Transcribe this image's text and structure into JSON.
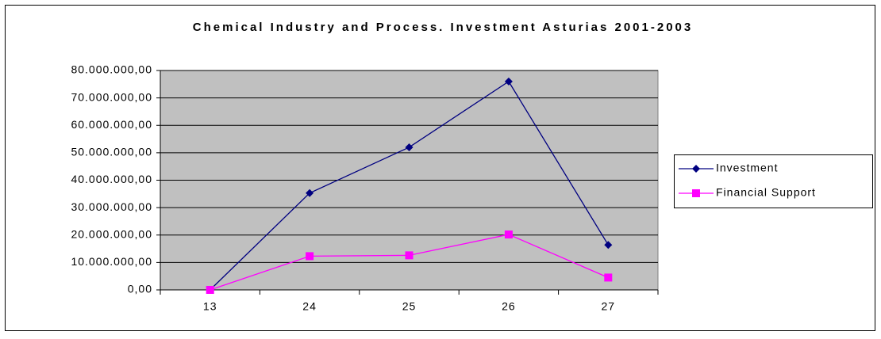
{
  "chart_data": {
    "type": "line",
    "title": "Chemical Industry and Process. Investment Asturias 2001-2003",
    "categories": [
      "13",
      "24",
      "25",
      "26",
      "27"
    ],
    "series": [
      {
        "name": "Investment",
        "color": "#000080",
        "marker": "diamond",
        "values": [
          0,
          35300000,
          52000000,
          76000000,
          16400000
        ]
      },
      {
        "name": "Financial Support",
        "color": "#ff00ff",
        "marker": "square",
        "values": [
          0,
          12300000,
          12600000,
          20200000,
          4500000
        ]
      }
    ],
    "ylim": [
      0,
      80000000
    ],
    "yticks": [
      {
        "value": 0,
        "label": "0,00"
      },
      {
        "value": 10000000,
        "label": "10.000.000,00"
      },
      {
        "value": 20000000,
        "label": "20.000.000,00"
      },
      {
        "value": 30000000,
        "label": "30.000.000,00"
      },
      {
        "value": 40000000,
        "label": "40.000.000,00"
      },
      {
        "value": 50000000,
        "label": "50.000.000,00"
      },
      {
        "value": 60000000,
        "label": "60.000.000,00"
      },
      {
        "value": 70000000,
        "label": "70.000.000,00"
      },
      {
        "value": 80000000,
        "label": "80.000.000,00"
      }
    ],
    "grid": true,
    "plot_background": "#c0c0c0",
    "legend": "right"
  }
}
